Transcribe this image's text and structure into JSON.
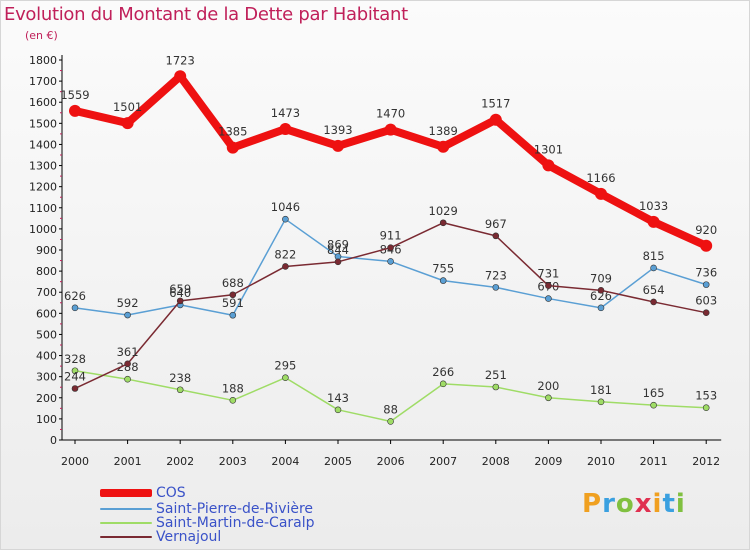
{
  "title": "Evolution du Montant de la Dette par Habitant",
  "subtitle": "(en €)",
  "logo": {
    "text": "Proxiti",
    "colors": [
      "#f0a020",
      "#3aa0e0",
      "#80c040",
      "#e03050",
      "#f0a020",
      "#3aa0e0",
      "#80c040"
    ]
  },
  "chart_data": {
    "type": "line",
    "x": [
      "2000",
      "2001",
      "2002",
      "2003",
      "2004",
      "2005",
      "2006",
      "2007",
      "2008",
      "2009",
      "2010",
      "2011",
      "2012"
    ],
    "ylim": [
      0,
      1800
    ],
    "ytick_step": 100,
    "grid": false,
    "legend_position": "bottom-left",
    "series": [
      {
        "name": "COS",
        "color": "#ee1111",
        "values": [
          1559,
          1501,
          1723,
          1385,
          1473,
          1393,
          1470,
          1389,
          1517,
          1301,
          1166,
          1033,
          920
        ],
        "labels": [
          "1559",
          "1501",
          "1723",
          "1385",
          "1473",
          "1393",
          "1470",
          "1389",
          "1517",
          "1301",
          "1166",
          "1033",
          "920"
        ]
      },
      {
        "name": "Saint-Pierre-de-Rivière",
        "color": "#5a9fd4",
        "values": [
          626,
          592,
          640,
          591,
          1046,
          869,
          846,
          755,
          723,
          670,
          626,
          815,
          736
        ],
        "labels": [
          "626",
          "592",
          "640",
          "591",
          "1046",
          "869",
          "846",
          "755",
          "723",
          "670",
          "626",
          "815",
          "736"
        ]
      },
      {
        "name": "Saint-Martin-de-Caralp",
        "color": "#9fdc66",
        "values": [
          328,
          288,
          238,
          188,
          295,
          143,
          88,
          266,
          251,
          200,
          181,
          165,
          153
        ],
        "labels": [
          "328",
          "288",
          "238",
          "188",
          "295",
          "143",
          "88",
          "266",
          "251",
          "200",
          "181",
          "165",
          "153"
        ]
      },
      {
        "name": "Vernajoul",
        "color": "#7a2a32",
        "values": [
          244,
          361,
          659,
          688,
          822,
          844,
          911,
          1029,
          967,
          731,
          709,
          654,
          603
        ],
        "labels": [
          "244",
          "361",
          "659",
          "688",
          "822",
          "844",
          "911",
          "1029",
          "967",
          "731",
          "709",
          "654",
          "603"
        ]
      }
    ]
  }
}
